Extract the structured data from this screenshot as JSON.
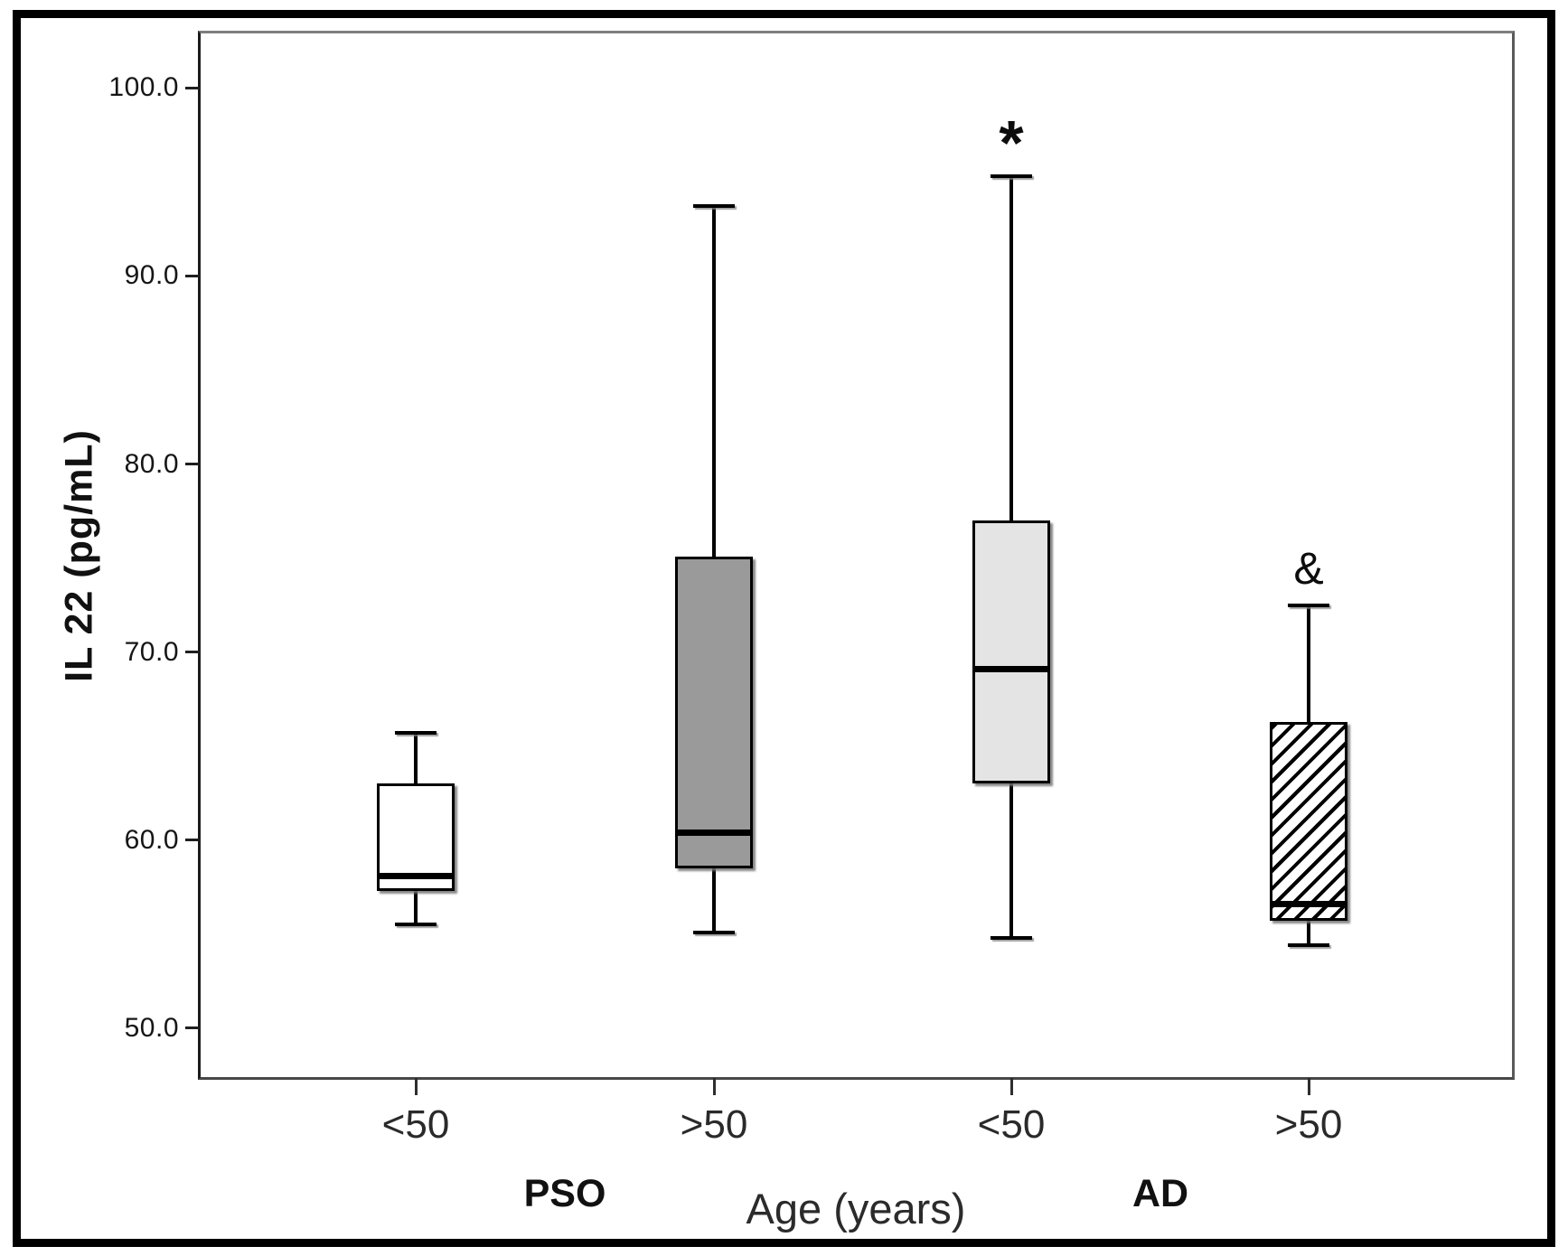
{
  "chart_data": {
    "type": "boxplot",
    "title": "",
    "ylabel": "IL 22 (pg/mL)",
    "xlabel": "Age (years)",
    "ylim": [
      47.4,
      102.9
    ],
    "grid": false,
    "legend": "none",
    "yticks": [
      {
        "v": 50,
        "label": "50.0"
      },
      {
        "v": 60,
        "label": "60.0"
      },
      {
        "v": 70,
        "label": "70.0"
      },
      {
        "v": 80,
        "label": "80.0"
      },
      {
        "v": 90,
        "label": "90.0"
      },
      {
        "v": 100,
        "label": "100.0"
      }
    ],
    "groups": [
      {
        "label": "PSO"
      },
      {
        "label": "AD"
      }
    ],
    "boxes": [
      {
        "group": "PSO",
        "category": "<50",
        "whisker_low": 55.5,
        "q1": 57.3,
        "median": 58.1,
        "q3": 63.0,
        "whisker_high": 65.7,
        "fill": "#ffffff",
        "pattern": "solid"
      },
      {
        "group": "PSO",
        "category": ">50",
        "whisker_low": 55.1,
        "q1": 58.5,
        "median": 60.4,
        "q3": 75.1,
        "whisker_high": 93.7,
        "fill": "#9a9a9a",
        "pattern": "solid"
      },
      {
        "group": "AD",
        "category": "<50",
        "whisker_low": 54.8,
        "q1": 63.0,
        "median": 69.1,
        "q3": 77.0,
        "whisker_high": 95.3,
        "fill": "#e4e4e4",
        "pattern": "solid"
      },
      {
        "group": "AD",
        "category": ">50",
        "whisker_low": 54.4,
        "q1": 55.7,
        "median": 56.6,
        "q3": 66.3,
        "whisker_high": 72.5,
        "fill": "#ffffff",
        "pattern": "diagonal-hatch"
      }
    ],
    "annotations": [
      {
        "text": "*",
        "box_index": 2
      },
      {
        "text": "&",
        "box_index": 3
      }
    ],
    "colors": {
      "box_stroke": "#000000",
      "median": "#000000",
      "gray_fill": "#9a9a9a",
      "light_gray_fill": "#e4e4e4",
      "frame": "#555555",
      "outer_border": "#000000"
    }
  }
}
